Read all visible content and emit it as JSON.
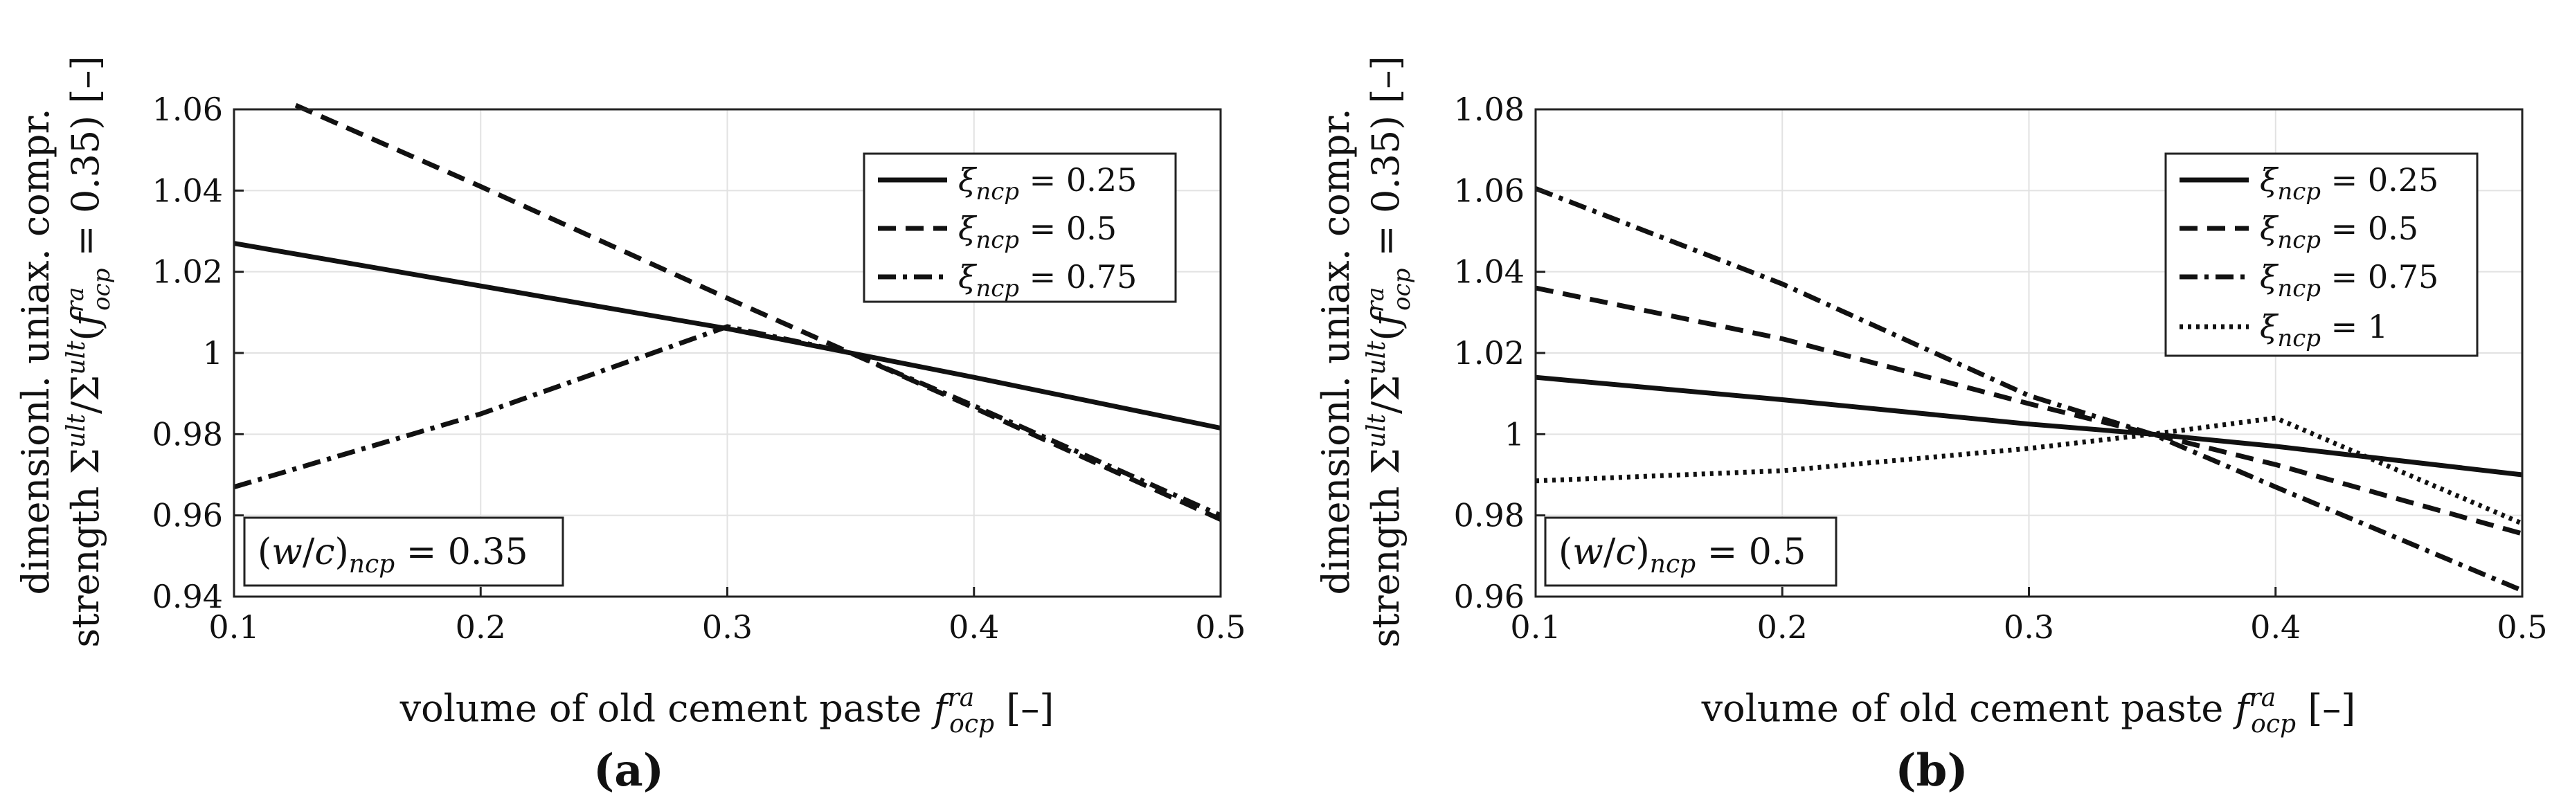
{
  "chart_data": [
    {
      "panel": "(a)",
      "type": "line",
      "xlabel": "volume of old cement paste f_ocp^ra [–]",
      "ylabel_line1": "dimensionl. uniax. compr.",
      "ylabel_line2": "strength Σ^ult/Σ^ult(f_ocp^ra = 0.35) [–]",
      "xlim": [
        0.1,
        0.5
      ],
      "ylim": [
        0.94,
        1.06
      ],
      "xticks": [
        "0.1",
        "0.2",
        "0.3",
        "0.4",
        "0.5"
      ],
      "yticks": [
        "0.94",
        "0.96",
        "0.98",
        "1",
        "1.02",
        "1.04",
        "1.06"
      ],
      "grid": true,
      "legend_position": "top-right",
      "annotation": "(w/c)_ncp = 0.35",
      "series": [
        {
          "name": "ξ_ncp = 0.25",
          "style": "solid",
          "x": [
            0.1,
            0.2,
            0.3,
            0.35,
            0.4,
            0.5
          ],
          "values": [
            1.027,
            1.0165,
            1.006,
            1.0,
            0.994,
            0.9815
          ]
        },
        {
          "name": "ξ_ncp = 0.5",
          "style": "dashed",
          "x": [
            0.125,
            0.2,
            0.3,
            0.35,
            0.4,
            0.5
          ],
          "values": [
            1.061,
            1.041,
            1.0135,
            1.0,
            0.9865,
            0.959
          ]
        },
        {
          "name": "ξ_ncp = 0.75",
          "style": "dashdot",
          "x": [
            0.1,
            0.2,
            0.3,
            0.35,
            0.4,
            0.5
          ],
          "values": [
            0.967,
            0.985,
            1.0065,
            1.0,
            0.987,
            0.96
          ]
        }
      ]
    },
    {
      "panel": "(b)",
      "type": "line",
      "xlabel": "volume of old cement paste f_ocp^ra [–]",
      "ylabel_line1": "dimensionl. uniax. compr.",
      "ylabel_line2": "strength Σ^ult/Σ^ult(f_ocp^ra = 0.35) [–]",
      "xlim": [
        0.1,
        0.5
      ],
      "ylim": [
        0.96,
        1.08
      ],
      "xticks": [
        "0.1",
        "0.2",
        "0.3",
        "0.4",
        "0.5"
      ],
      "yticks": [
        "0.96",
        "0.98",
        "1",
        "1.02",
        "1.04",
        "1.06",
        "1.08"
      ],
      "grid": true,
      "legend_position": "top-right",
      "annotation": "(w/c)_ncp = 0.5",
      "series": [
        {
          "name": "ξ_ncp = 0.25",
          "style": "solid",
          "x": [
            0.1,
            0.2,
            0.3,
            0.35,
            0.4,
            0.5
          ],
          "values": [
            1.014,
            1.0085,
            1.0025,
            1.0,
            0.997,
            0.99
          ]
        },
        {
          "name": "ξ_ncp = 0.5",
          "style": "dashed",
          "x": [
            0.1,
            0.2,
            0.3,
            0.35,
            0.4,
            0.5
          ],
          "values": [
            1.036,
            1.0235,
            1.0075,
            1.0,
            0.9925,
            0.9755
          ]
        },
        {
          "name": "ξ_ncp = 0.75",
          "style": "dashdot",
          "x": [
            0.1,
            0.2,
            0.3,
            0.35,
            0.4,
            0.5
          ],
          "values": [
            1.0605,
            1.037,
            1.0095,
            1.0,
            0.987,
            0.9615
          ]
        },
        {
          "name": "ξ_ncp = 1",
          "style": "dotted",
          "x": [
            0.1,
            0.2,
            0.3,
            0.35,
            0.4,
            0.5
          ],
          "values": [
            0.9885,
            0.991,
            0.9965,
            1.0,
            1.004,
            0.978
          ]
        }
      ]
    }
  ]
}
